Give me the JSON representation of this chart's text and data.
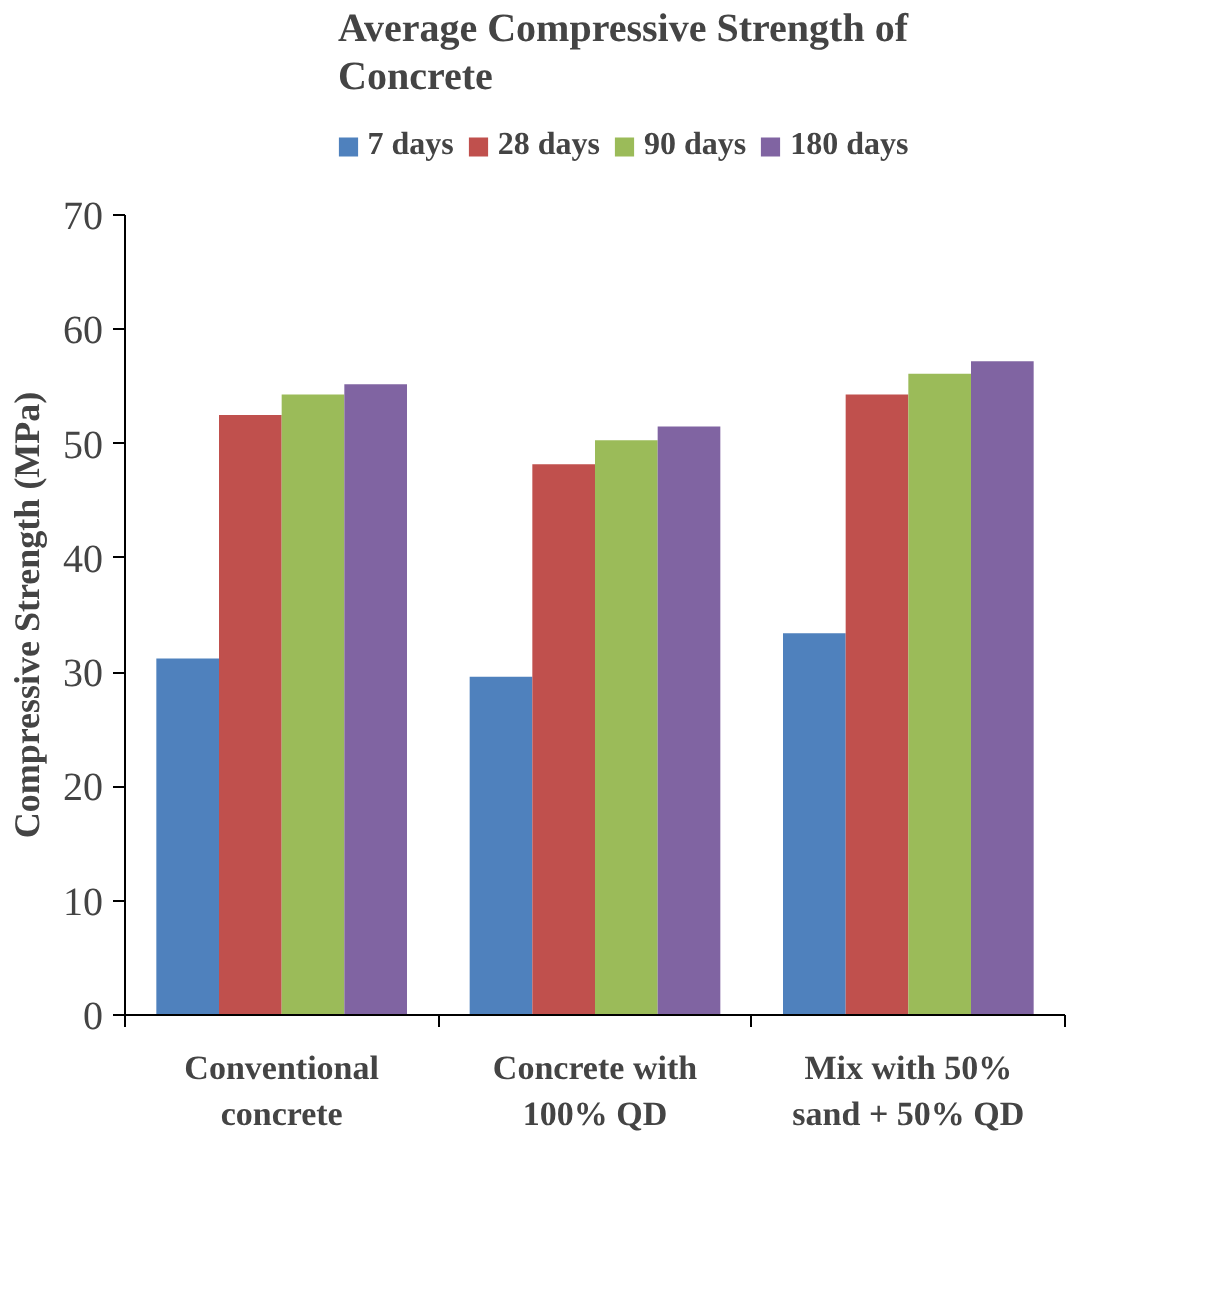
{
  "chart_data": {
    "type": "bar",
    "title": "Average Compressive Strength of Concrete",
    "ylabel": "Compressive Strength (MPa)",
    "categories": [
      "Conventional concrete",
      "Concrete with 100% QD",
      "Mix with 50% sand + 50% QD"
    ],
    "series": [
      {
        "name": "7 days",
        "color": "#4f81bd",
        "values": [
          31.2,
          29.6,
          33.4
        ]
      },
      {
        "name": "28 days",
        "color": "#c0504d",
        "values": [
          52.5,
          48.2,
          54.3
        ]
      },
      {
        "name": "90 days",
        "color": "#9bbb59",
        "values": [
          54.3,
          50.3,
          56.1
        ]
      },
      {
        "name": "180 days",
        "color": "#8064a2",
        "values": [
          55.2,
          51.5,
          57.2
        ]
      }
    ],
    "ylim": [
      0,
      70
    ],
    "yticks": [
      0,
      10,
      20,
      30,
      40,
      50,
      60,
      70
    ],
    "grid": false,
    "legend": "top"
  }
}
